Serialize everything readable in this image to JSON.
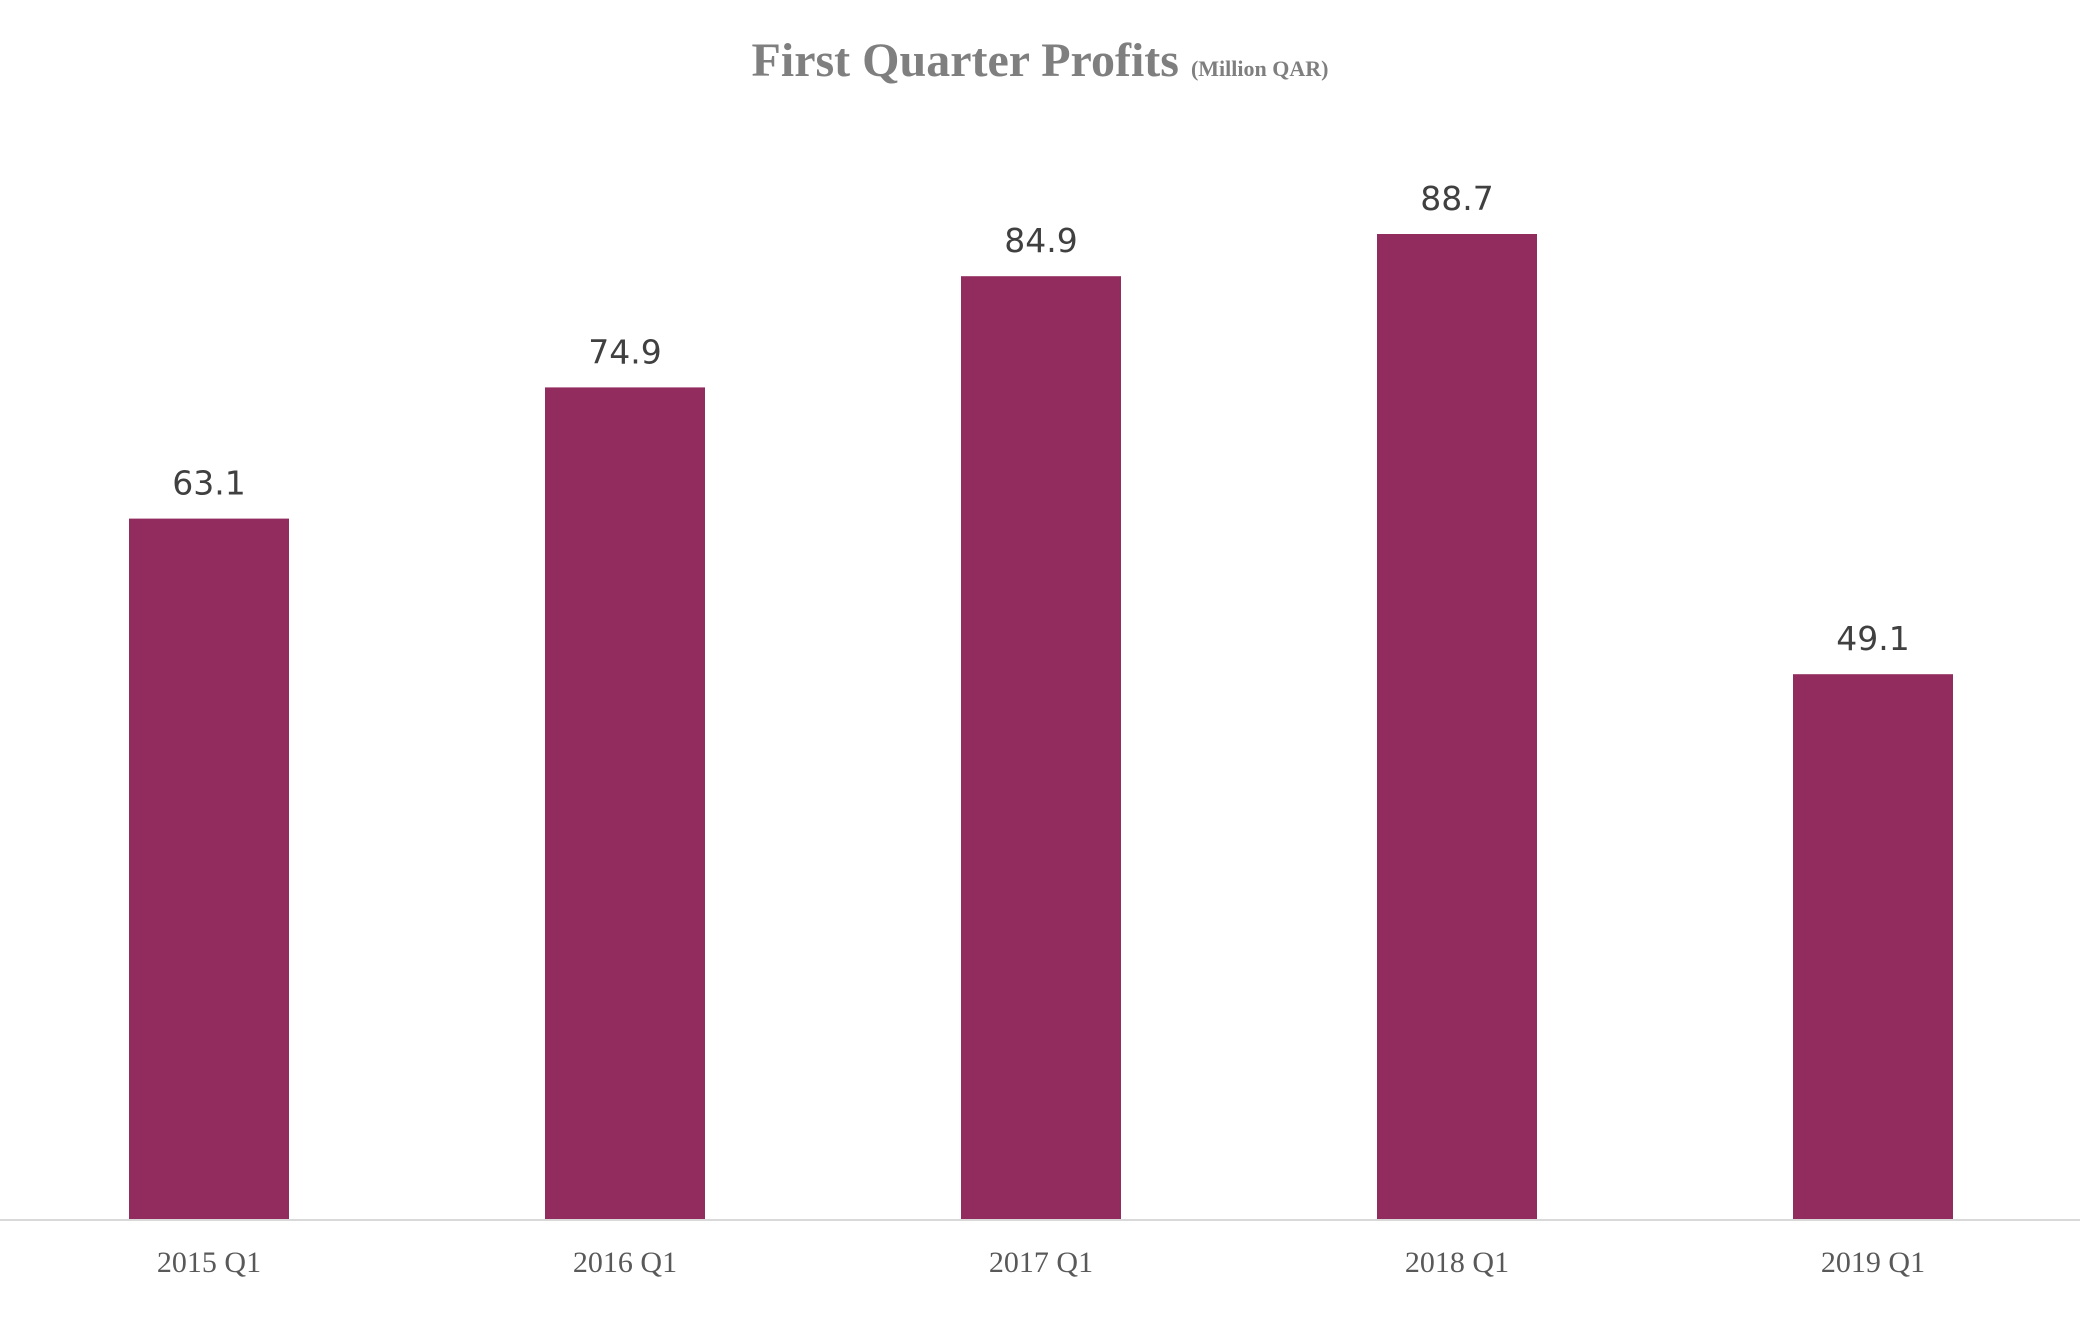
{
  "chart_data": {
    "type": "bar",
    "title": "First Quarter Profits",
    "subtitle": "(Million QAR)",
    "categories": [
      "2015 Q1",
      "2016 Q1",
      "2017 Q1",
      "2018 Q1",
      "2019 Q1"
    ],
    "values": [
      63.1,
      74.9,
      84.9,
      88.7,
      49.1
    ],
    "data_labels": [
      "63.1",
      "74.9",
      "84.9",
      "88.7",
      "49.1"
    ],
    "xlabel": "",
    "ylabel": "",
    "ylim": [
      0,
      88.7
    ],
    "grid": false,
    "legend": "none",
    "bar_color": "#922B5E",
    "axis_color": "#d9d9d9"
  }
}
